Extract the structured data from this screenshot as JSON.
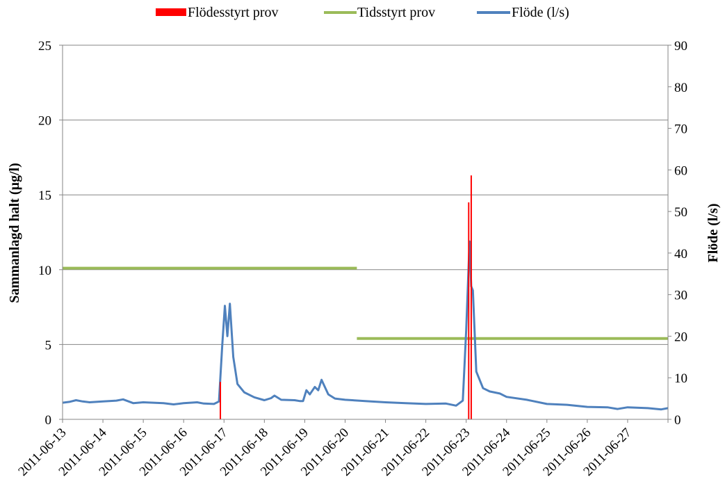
{
  "chart_data": {
    "type": "line",
    "title": "",
    "legend": {
      "placement": "top",
      "entries": [
        {
          "name": "Flödesstyrt prov",
          "color": "#ff0000",
          "symbol": "bar"
        },
        {
          "name": "Tidsstyrt prov",
          "color": "#9bbb59",
          "symbol": "line"
        },
        {
          "name": "Flöde (l/s)",
          "color": "#4f81bd",
          "symbol": "line"
        }
      ]
    },
    "y_left": {
      "label": "Sammanlagd halt (µg/l)",
      "ylim": [
        0,
        25
      ],
      "ticks": [
        0,
        5,
        10,
        15,
        20,
        25
      ]
    },
    "y_right": {
      "label": "Flöde (l/s)",
      "ylim": [
        0,
        90
      ],
      "ticks": [
        0,
        10,
        20,
        30,
        40,
        50,
        60,
        70,
        80,
        90
      ]
    },
    "x_axis": {
      "type": "date",
      "range": [
        "2011-06-13",
        "2011-06-28"
      ],
      "tick_labels": [
        "2011-06-13",
        "2011-06-14",
        "2011-06-15",
        "2011-06-16",
        "2011-06-17",
        "2011-06-18",
        "2011-06-19",
        "2011-06-20",
        "2011-06-21",
        "2011-06-22",
        "2011-06-23",
        "2011-06-24",
        "2011-06-25",
        "2011-06-26",
        "2011-06-27"
      ]
    },
    "grid": {
      "horizontal": true,
      "vertical": false
    },
    "series": [
      {
        "name": "Flödesstyrt prov",
        "axis": "left",
        "type": "bar",
        "color": "#ff0000",
        "points": [
          {
            "x": "2011-06-16 21:50",
            "y": 2.5
          },
          {
            "x": "2011-06-23 01:30",
            "y": 14.5
          },
          {
            "x": "2011-06-23 03:00",
            "y": 16.3
          }
        ]
      },
      {
        "name": "Tidsstyrt prov",
        "axis": "left",
        "type": "step",
        "color": "#9bbb59",
        "segments": [
          {
            "from": "2011-06-13 00:00",
            "to": "2011-06-20 07:00",
            "y": 10.1
          },
          {
            "from": "2011-06-20 07:00",
            "to": "2011-06-28 00:00",
            "y": 5.4
          }
        ]
      },
      {
        "name": "Flöde (l/s)",
        "axis": "right",
        "type": "line",
        "color": "#4f81bd",
        "points": [
          {
            "x": "2011-06-13 00:00",
            "y": 4.0
          },
          {
            "x": "2011-06-13 04:00",
            "y": 4.2
          },
          {
            "x": "2011-06-13 08:00",
            "y": 4.6
          },
          {
            "x": "2011-06-13 12:00",
            "y": 4.3
          },
          {
            "x": "2011-06-13 16:00",
            "y": 4.1
          },
          {
            "x": "2011-06-14 00:00",
            "y": 4.3
          },
          {
            "x": "2011-06-14 08:00",
            "y": 4.5
          },
          {
            "x": "2011-06-14 12:00",
            "y": 4.8
          },
          {
            "x": "2011-06-14 18:00",
            "y": 3.9
          },
          {
            "x": "2011-06-15 00:00",
            "y": 4.1
          },
          {
            "x": "2011-06-15 12:00",
            "y": 3.9
          },
          {
            "x": "2011-06-15 18:00",
            "y": 3.6
          },
          {
            "x": "2011-06-16 00:00",
            "y": 3.9
          },
          {
            "x": "2011-06-16 08:00",
            "y": 4.1
          },
          {
            "x": "2011-06-16 12:00",
            "y": 3.8
          },
          {
            "x": "2011-06-16 18:00",
            "y": 3.7
          },
          {
            "x": "2011-06-16 21:00",
            "y": 4.3
          },
          {
            "x": "2011-06-16 23:00",
            "y": 18.0
          },
          {
            "x": "2011-06-17 00:30",
            "y": 27.3
          },
          {
            "x": "2011-06-17 02:00",
            "y": 20.0
          },
          {
            "x": "2011-06-17 03:30",
            "y": 27.8
          },
          {
            "x": "2011-06-17 05:30",
            "y": 15.0
          },
          {
            "x": "2011-06-17 08:00",
            "y": 8.5
          },
          {
            "x": "2011-06-17 12:00",
            "y": 6.5
          },
          {
            "x": "2011-06-17 18:00",
            "y": 5.3
          },
          {
            "x": "2011-06-18 00:00",
            "y": 4.6
          },
          {
            "x": "2011-06-18 04:00",
            "y": 5.1
          },
          {
            "x": "2011-06-18 06:00",
            "y": 5.7
          },
          {
            "x": "2011-06-18 10:00",
            "y": 4.7
          },
          {
            "x": "2011-06-18 18:00",
            "y": 4.6
          },
          {
            "x": "2011-06-18 21:00",
            "y": 4.4
          },
          {
            "x": "2011-06-18 23:00",
            "y": 4.4
          },
          {
            "x": "2011-06-19 01:00",
            "y": 7.0
          },
          {
            "x": "2011-06-19 03:00",
            "y": 6.0
          },
          {
            "x": "2011-06-19 06:00",
            "y": 7.8
          },
          {
            "x": "2011-06-19 08:00",
            "y": 7.0
          },
          {
            "x": "2011-06-19 10:00",
            "y": 9.5
          },
          {
            "x": "2011-06-19 14:00",
            "y": 6.0
          },
          {
            "x": "2011-06-19 18:00",
            "y": 5.0
          },
          {
            "x": "2011-06-20 00:00",
            "y": 4.7
          },
          {
            "x": "2011-06-20 12:00",
            "y": 4.4
          },
          {
            "x": "2011-06-21 00:00",
            "y": 4.1
          },
          {
            "x": "2011-06-21 12:00",
            "y": 3.9
          },
          {
            "x": "2011-06-22 00:00",
            "y": 3.7
          },
          {
            "x": "2011-06-22 12:00",
            "y": 3.8
          },
          {
            "x": "2011-06-22 18:00",
            "y": 3.3
          },
          {
            "x": "2011-06-22 22:00",
            "y": 4.5
          },
          {
            "x": "2011-06-23 00:00",
            "y": 21.5
          },
          {
            "x": "2011-06-23 02:00",
            "y": 42.8
          },
          {
            "x": "2011-06-23 03:00",
            "y": 32.0
          },
          {
            "x": "2011-06-23 04:00",
            "y": 31.0
          },
          {
            "x": "2011-06-23 06:00",
            "y": 11.5
          },
          {
            "x": "2011-06-23 10:00",
            "y": 7.5
          },
          {
            "x": "2011-06-23 14:00",
            "y": 6.7
          },
          {
            "x": "2011-06-23 20:00",
            "y": 6.2
          },
          {
            "x": "2011-06-24 00:00",
            "y": 5.4
          },
          {
            "x": "2011-06-24 12:00",
            "y": 4.7
          },
          {
            "x": "2011-06-25 00:00",
            "y": 3.7
          },
          {
            "x": "2011-06-25 12:00",
            "y": 3.5
          },
          {
            "x": "2011-06-26 00:00",
            "y": 3.0
          },
          {
            "x": "2011-06-26 12:00",
            "y": 2.9
          },
          {
            "x": "2011-06-26 18:00",
            "y": 2.5
          },
          {
            "x": "2011-06-27 00:00",
            "y": 2.9
          },
          {
            "x": "2011-06-27 12:00",
            "y": 2.7
          },
          {
            "x": "2011-06-27 20:00",
            "y": 2.4
          },
          {
            "x": "2011-06-28 00:00",
            "y": 2.7
          }
        ]
      }
    ]
  }
}
